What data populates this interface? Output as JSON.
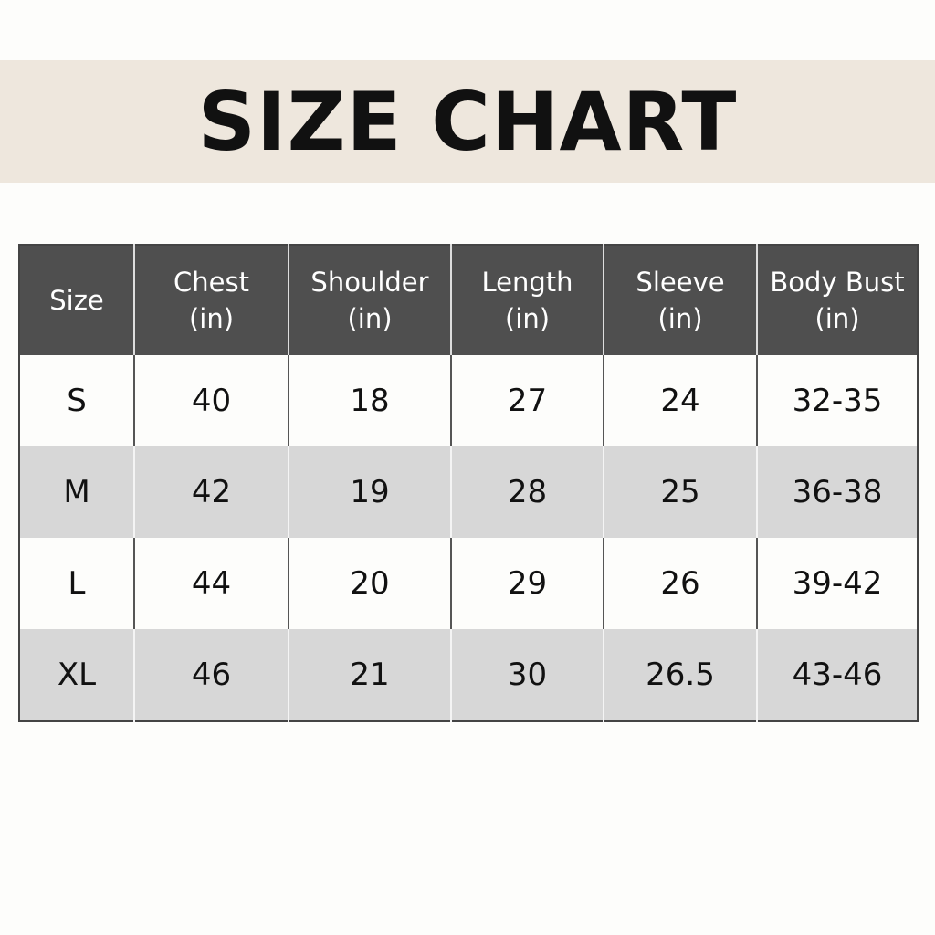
{
  "title": "SIZE CHART",
  "colors": {
    "banner": "#eee7dd",
    "header": "#4f4f4f",
    "alt_row": "#d7d7d7"
  },
  "table": {
    "headers": [
      {
        "line1": "Size",
        "line2": ""
      },
      {
        "line1": "Chest",
        "line2": "(in)"
      },
      {
        "line1": "Shoulder",
        "line2": "(in)"
      },
      {
        "line1": "Length",
        "line2": "(in)"
      },
      {
        "line1": "Sleeve",
        "line2": "(in)"
      },
      {
        "line1": "Body Bust",
        "line2": "(in)"
      }
    ],
    "rows": [
      [
        "S",
        "40",
        "18",
        "27",
        "24",
        "32-35"
      ],
      [
        "M",
        "42",
        "19",
        "28",
        "25",
        "36-38"
      ],
      [
        "L",
        "44",
        "20",
        "29",
        "26",
        "39-42"
      ],
      [
        "XL",
        "46",
        "21",
        "30",
        "26.5",
        "43-46"
      ]
    ]
  }
}
